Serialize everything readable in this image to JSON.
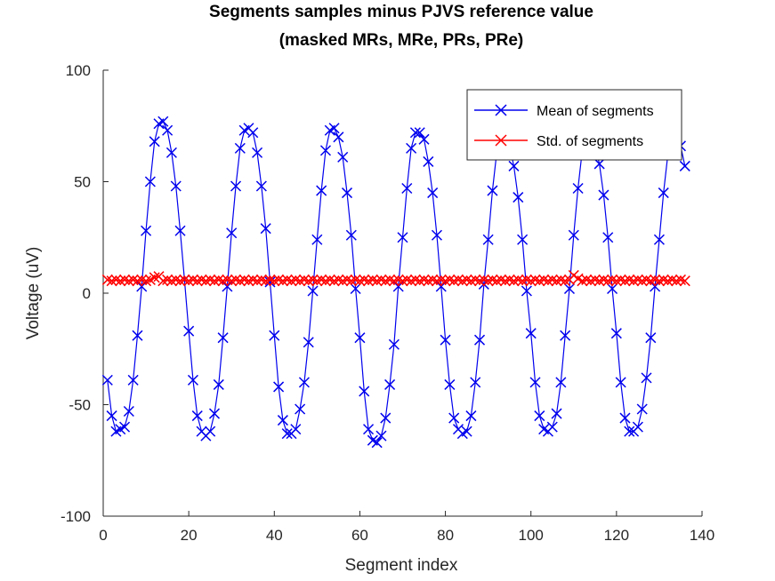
{
  "chart_data": {
    "type": "line",
    "title_line1": "Segments samples minus PJVS reference value",
    "title_line2": "(masked MRs, MRe, PRs, PRe)",
    "xlabel": "Segment index",
    "ylabel": "Voltage (uV)",
    "xlim": [
      0,
      140
    ],
    "ylim": [
      -100,
      100
    ],
    "xticks": [
      "0",
      "20",
      "40",
      "60",
      "80",
      "100",
      "120",
      "140"
    ],
    "yticks": [
      "-100",
      "-50",
      "0",
      "50",
      "100"
    ],
    "xtick_values": [
      0,
      20,
      40,
      60,
      80,
      100,
      120,
      140
    ],
    "ytick_values": [
      -100,
      -50,
      0,
      50,
      100
    ],
    "grid": false,
    "legend_position": "top-right",
    "legend": [
      "Mean of segments",
      "Std. of segments"
    ],
    "series": [
      {
        "name": "Mean of segments",
        "color": "#0000ee",
        "marker": "x",
        "x": [
          1,
          2,
          3,
          4,
          5,
          6,
          7,
          8,
          9,
          10,
          11,
          12,
          13,
          14,
          15,
          16,
          17,
          18,
          19,
          20,
          21,
          22,
          23,
          24,
          25,
          26,
          27,
          28,
          29,
          30,
          31,
          32,
          33,
          34,
          35,
          36,
          37,
          38,
          39,
          40,
          41,
          42,
          43,
          44,
          45,
          46,
          47,
          48,
          49,
          50,
          51,
          52,
          53,
          54,
          55,
          56,
          57,
          58,
          59,
          60,
          61,
          62,
          63,
          64,
          65,
          66,
          67,
          68,
          69,
          70,
          71,
          72,
          73,
          74,
          75,
          76,
          77,
          78,
          79,
          80,
          81,
          82,
          83,
          84,
          85,
          86,
          87,
          88,
          89,
          90,
          91,
          92,
          93,
          94,
          95,
          96,
          97,
          98,
          99,
          100,
          101,
          102,
          103,
          104,
          105,
          106,
          107,
          108,
          109,
          110,
          111,
          112,
          113,
          114,
          115,
          116,
          117,
          118,
          119,
          120,
          121,
          122,
          123,
          124,
          125,
          126,
          127,
          128,
          129,
          130,
          131,
          132,
          133,
          134,
          135,
          136
        ],
        "values": [
          -39,
          -55,
          -62,
          -61,
          -60,
          -53,
          -39,
          -19,
          3,
          28,
          50,
          68,
          76,
          77,
          73,
          63,
          48,
          28,
          6,
          -17,
          -39,
          -55,
          -62,
          -64,
          -62,
          -54,
          -41,
          -20,
          3,
          27,
          48,
          65,
          73,
          74,
          72,
          63,
          48,
          29,
          5,
          -19,
          -42,
          -57,
          -63,
          -63,
          -61,
          -52,
          -40,
          -22,
          1,
          24,
          46,
          64,
          73,
          74,
          70,
          61,
          45,
          26,
          2,
          -20,
          -44,
          -61,
          -66,
          -67,
          -64,
          -56,
          -41,
          -23,
          3,
          25,
          47,
          65,
          72,
          72,
          69,
          59,
          45,
          26,
          3,
          -21,
          -41,
          -56,
          -61,
          -63,
          -62,
          -55,
          -40,
          -21,
          4,
          24,
          46,
          63,
          71,
          71,
          66,
          57,
          43,
          24,
          1,
          -18,
          -40,
          -55,
          -61,
          -62,
          -60,
          -54,
          -40,
          -19,
          2,
          26,
          47,
          64,
          71,
          71,
          66,
          58,
          44,
          25,
          2,
          -18,
          -40,
          -56,
          -62,
          -62,
          -60,
          -52,
          -38,
          -20,
          3,
          24,
          45,
          62,
          69,
          70,
          66,
          57
        ]
      },
      {
        "name": "Std. of segments",
        "color": "#ff0000",
        "marker": "x",
        "x": [
          1,
          2,
          3,
          4,
          5,
          6,
          7,
          8,
          9,
          10,
          11,
          12,
          13,
          14,
          15,
          16,
          17,
          18,
          19,
          20,
          21,
          22,
          23,
          24,
          25,
          26,
          27,
          28,
          29,
          30,
          31,
          32,
          33,
          34,
          35,
          36,
          37,
          38,
          39,
          40,
          41,
          42,
          43,
          44,
          45,
          46,
          47,
          48,
          49,
          50,
          51,
          52,
          53,
          54,
          55,
          56,
          57,
          58,
          59,
          60,
          61,
          62,
          63,
          64,
          65,
          66,
          67,
          68,
          69,
          70,
          71,
          72,
          73,
          74,
          75,
          76,
          77,
          78,
          79,
          80,
          81,
          82,
          83,
          84,
          85,
          86,
          87,
          88,
          89,
          90,
          91,
          92,
          93,
          94,
          95,
          96,
          97,
          98,
          99,
          100,
          101,
          102,
          103,
          104,
          105,
          106,
          107,
          108,
          109,
          110,
          111,
          112,
          113,
          114,
          115,
          116,
          117,
          118,
          119,
          120,
          121,
          122,
          123,
          124,
          125,
          126,
          127,
          128,
          129,
          130,
          131,
          132,
          133,
          134,
          135,
          136
        ],
        "values": [
          6,
          5.5,
          6,
          5.5,
          6,
          5.5,
          6,
          5.5,
          6,
          5.5,
          6,
          7,
          7.5,
          5.5,
          6,
          5.5,
          6,
          5.5,
          6,
          5.5,
          6,
          5.5,
          6,
          5.5,
          6,
          5.5,
          6,
          5.5,
          6,
          5.5,
          6,
          5.5,
          6,
          5.5,
          6,
          5.5,
          6,
          5.5,
          6,
          5.5,
          6,
          5.5,
          6,
          5.5,
          6,
          5.5,
          6,
          5.5,
          6,
          5.5,
          6,
          5.5,
          6,
          5.5,
          6,
          5.5,
          6,
          5.5,
          6,
          5.5,
          6,
          5.5,
          6,
          5.5,
          6,
          5.5,
          6,
          5.5,
          6,
          5.5,
          6,
          5.5,
          6,
          5.5,
          6,
          5.5,
          6,
          5.5,
          6,
          5.5,
          6,
          5.5,
          6,
          5.5,
          6,
          5.5,
          6,
          5.5,
          6,
          5.5,
          6,
          5.5,
          6,
          5.5,
          6,
          5.5,
          6,
          5.5,
          6,
          5.5,
          6,
          5.5,
          6,
          5.5,
          6,
          5.5,
          6,
          5.5,
          6,
          8,
          6.5,
          5.5,
          6,
          5.5,
          6,
          5.5,
          6,
          5.5,
          6,
          5.5,
          6,
          5.5,
          6,
          5.5,
          6,
          5.5,
          6,
          5.5,
          6,
          5.5,
          6,
          5.5,
          6,
          5.5,
          6,
          5.5
        ]
      }
    ]
  }
}
